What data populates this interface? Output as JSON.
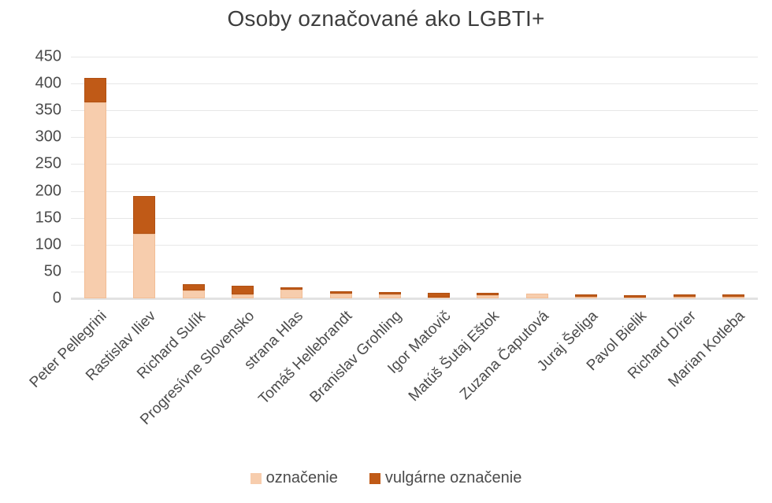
{
  "chart_data": {
    "type": "bar",
    "stacked": true,
    "title": "Osoby označované ako LGBTI+",
    "categories": [
      "Peter Pellegrini",
      "Rastislav Iliev",
      "Richard Sulík",
      "Progresívne Slovensko",
      "strana Hlas",
      "Tomáš Hellebrandt",
      "Branislav Grohling",
      "Igor Matovič",
      "Matúš Šutaj Eštok",
      "Zuzana Čaputová",
      "Juraj Šeliga",
      "Pavol Bielik",
      "Richard Dírer",
      "Marian Kotleba"
    ],
    "series": [
      {
        "name": "označenie",
        "color": "#f7cdad",
        "values": [
          365,
          120,
          14,
          8,
          16,
          9,
          8,
          1,
          6,
          9,
          3,
          1,
          3,
          3
        ]
      },
      {
        "name": "vulgárne označenie",
        "color": "#c05a17",
        "values": [
          45,
          70,
          13,
          15,
          4,
          4,
          4,
          10,
          4,
          0,
          5,
          5,
          4,
          4
        ]
      }
    ],
    "ylim": [
      0,
      450
    ],
    "ytick_step": 50,
    "grid": true,
    "legend_position": "bottom",
    "xlabel": "",
    "ylabel": ""
  },
  "style": {
    "title_color": "#3d3d3d",
    "axis_text_color": "#4b4b4b",
    "gridline_color": "#e7e7e7",
    "baseline_color": "#e2e2e2",
    "background": "#ffffff"
  }
}
